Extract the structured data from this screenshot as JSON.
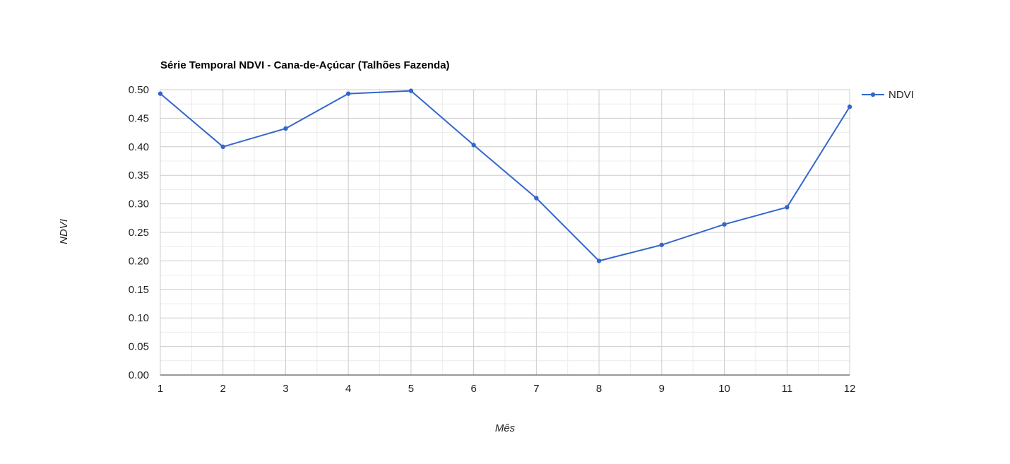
{
  "chart_data": {
    "type": "line",
    "title": "Série Temporal NDVI - Cana-de-Açúcar (Talhões Fazenda)",
    "xlabel": "Mês",
    "ylabel": "NDVI",
    "x": [
      1,
      2,
      3,
      4,
      5,
      6,
      7,
      8,
      9,
      10,
      11,
      12
    ],
    "x_tick_labels": [
      "1",
      "2",
      "3",
      "4",
      "5",
      "6",
      "7",
      "8",
      "9",
      "10",
      "11",
      "12"
    ],
    "xlim": [
      1,
      12
    ],
    "ylim": [
      0,
      0.5
    ],
    "y_ticks": [
      "0.00",
      "0.05",
      "0.10",
      "0.15",
      "0.20",
      "0.25",
      "0.30",
      "0.35",
      "0.40",
      "0.45",
      "0.50"
    ],
    "grid": true,
    "legend_position": "right",
    "series": [
      {
        "name": "NDVI",
        "color": "#3366cc",
        "values": [
          0.493,
          0.4,
          0.432,
          0.493,
          0.498,
          0.403,
          0.31,
          0.2,
          0.228,
          0.264,
          0.294,
          0.47
        ]
      }
    ]
  }
}
